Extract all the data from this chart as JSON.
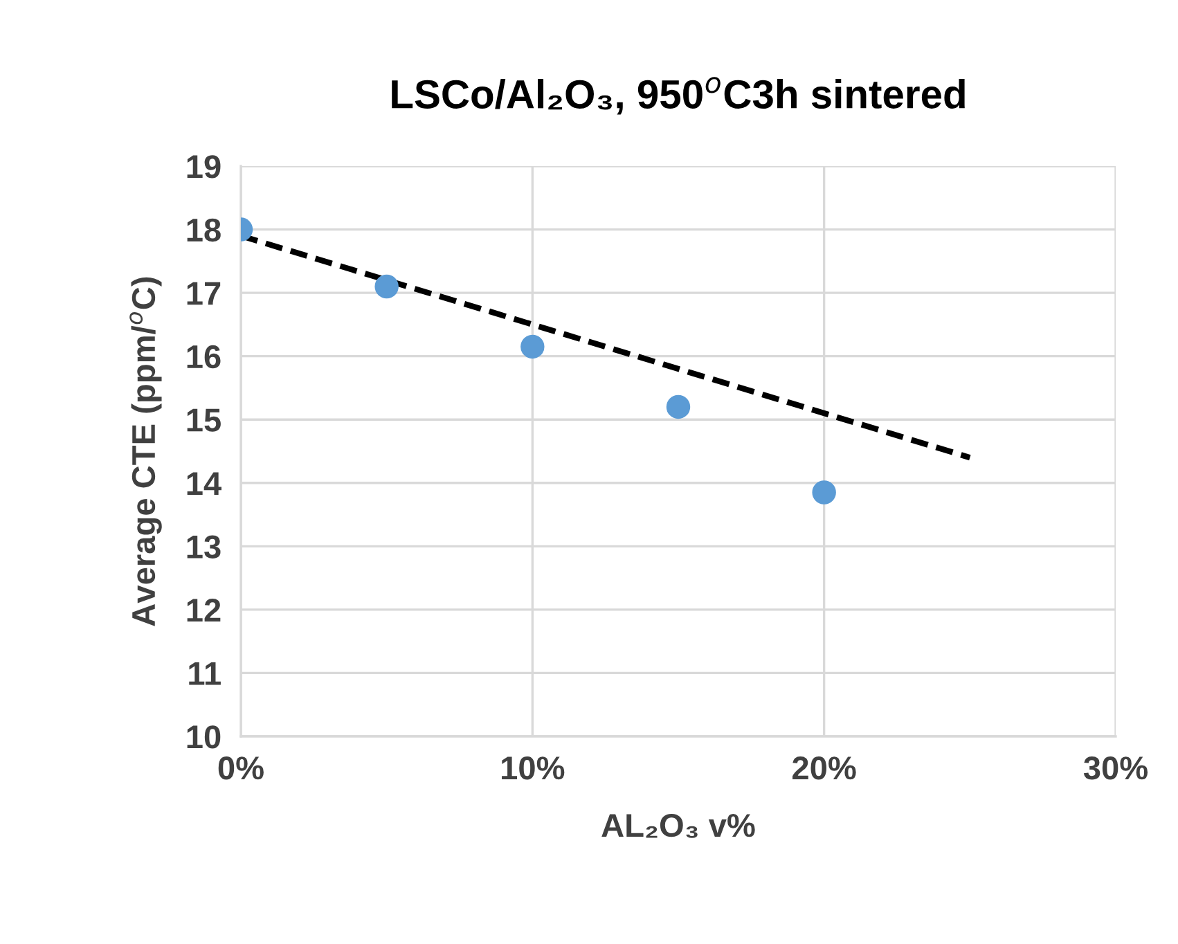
{
  "chart_data": {
    "type": "scatter",
    "title": "LSCo/Al₂O₃, 950$^{o}$C3h sintered",
    "xlabel": "AL₂O₃ v%",
    "ylabel": "Average CTE (ppm/$^{o}$C)",
    "x": [
      0,
      5,
      10,
      15,
      20
    ],
    "series": [
      {
        "color": "#5b9bd5",
        "values": [
          18.0,
          17.1,
          16.15,
          15.2,
          13.85
        ],
        "marker": "circle"
      },
      {
        "type": "line",
        "color": "#000000",
        "x": [
          0,
          25
        ],
        "values": [
          17.9,
          14.4
        ],
        "line_style": "dashed",
        "marker": "none"
      }
    ],
    "xlim": [
      0,
      30
    ],
    "xticks": [
      {
        "value": 0,
        "label": "0%"
      },
      {
        "value": 10,
        "label": "10%"
      },
      {
        "value": 20,
        "label": "20%"
      },
      {
        "value": 30,
        "label": "30%"
      }
    ],
    "ylim": [
      10,
      19
    ],
    "yticks": [
      10,
      11,
      12,
      13,
      14,
      15,
      16,
      17,
      18,
      19
    ],
    "grid": true,
    "legend": false
  }
}
